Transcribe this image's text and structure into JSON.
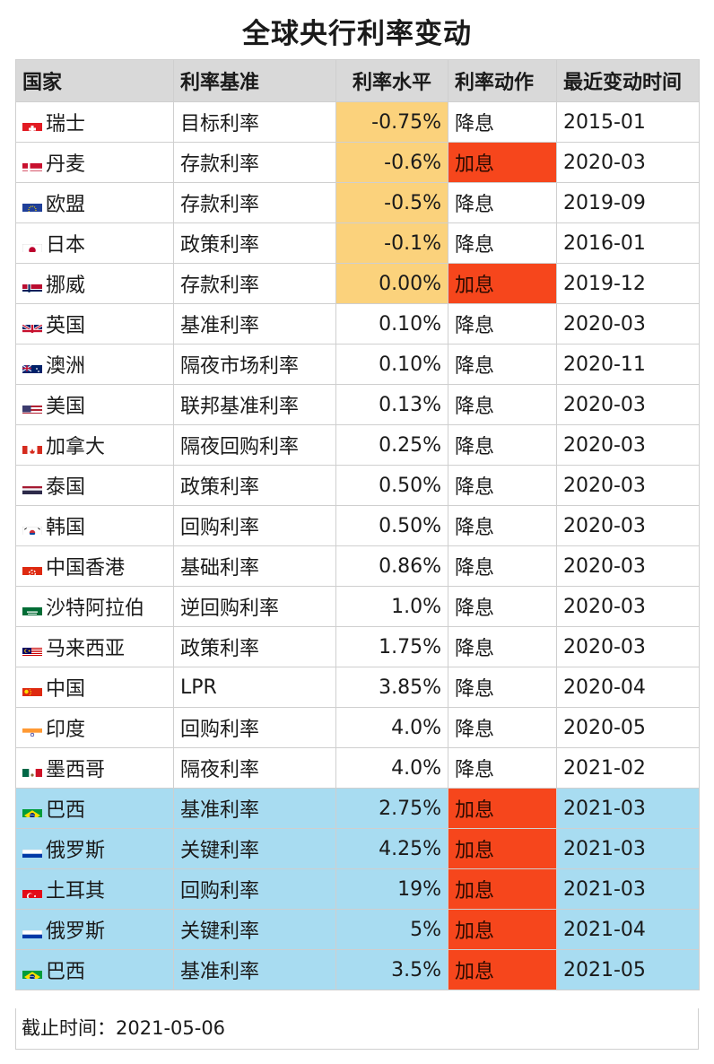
{
  "title": "全球央行利率变动",
  "headers": {
    "country": "国家",
    "benchmark": "利率基准",
    "level": "利率水平",
    "action": "利率动作",
    "date": "最近变动时间"
  },
  "colors": {
    "negative_level": "#fbd27c",
    "hike_action": "#f6461c",
    "recent_hike_row": "#a8dcf1",
    "header": "#d9d9d9"
  },
  "rows": [
    {
      "country": "瑞士",
      "flag": "switzerland-flag-icon",
      "benchmark": "目标利率",
      "level": "-0.75%",
      "action": "降息",
      "date": "2015-01"
    },
    {
      "country": "丹麦",
      "flag": "denmark-flag-icon",
      "benchmark": "存款利率",
      "level": "-0.6%",
      "action": "加息",
      "date": "2020-03"
    },
    {
      "country": "欧盟",
      "flag": "eu-flag-icon",
      "benchmark": "存款利率",
      "level": "-0.5%",
      "action": "降息",
      "date": "2019-09"
    },
    {
      "country": "日本",
      "flag": "japan-flag-icon",
      "benchmark": "政策利率",
      "level": "-0.1%",
      "action": "降息",
      "date": "2016-01"
    },
    {
      "country": "挪威",
      "flag": "norway-flag-icon",
      "benchmark": "存款利率",
      "level": "0.00%",
      "action": "加息",
      "date": "2019-12"
    },
    {
      "country": "英国",
      "flag": "uk-flag-icon",
      "benchmark": "基准利率",
      "level": "0.10%",
      "action": "降息",
      "date": "2020-03"
    },
    {
      "country": "澳洲",
      "flag": "australia-flag-icon",
      "benchmark": "隔夜市场利率",
      "level": "0.10%",
      "action": "降息",
      "date": "2020-11"
    },
    {
      "country": "美国",
      "flag": "usa-flag-icon",
      "benchmark": "联邦基准利率",
      "level": "0.13%",
      "action": "降息",
      "date": "2020-03"
    },
    {
      "country": "加拿大",
      "flag": "canada-flag-icon",
      "benchmark": "隔夜回购利率",
      "level": "0.25%",
      "action": "降息",
      "date": "2020-03"
    },
    {
      "country": "泰国",
      "flag": "thailand-flag-icon",
      "benchmark": "政策利率",
      "level": "0.50%",
      "action": "降息",
      "date": "2020-03"
    },
    {
      "country": "韩国",
      "flag": "korea-flag-icon",
      "benchmark": "回购利率",
      "level": "0.50%",
      "action": "降息",
      "date": "2020-03"
    },
    {
      "country": "中国香港",
      "flag": "hongkong-flag-icon",
      "benchmark": "基础利率",
      "level": "0.86%",
      "action": "降息",
      "date": "2020-03"
    },
    {
      "country": "沙特阿拉伯",
      "flag": "saudi-flag-icon",
      "benchmark": "逆回购利率",
      "level": "1.0%",
      "action": "降息",
      "date": "2020-03"
    },
    {
      "country": "马来西亚",
      "flag": "malaysia-flag-icon",
      "benchmark": "政策利率",
      "level": "1.75%",
      "action": "降息",
      "date": "2020-03"
    },
    {
      "country": "中国",
      "flag": "china-flag-icon",
      "benchmark": "LPR",
      "level": "3.85%",
      "action": "降息",
      "date": "2020-04"
    },
    {
      "country": "印度",
      "flag": "india-flag-icon",
      "benchmark": "回购利率",
      "level": "4.0%",
      "action": "降息",
      "date": "2020-05"
    },
    {
      "country": "墨西哥",
      "flag": "mexico-flag-icon",
      "benchmark": "隔夜利率",
      "level": "4.0%",
      "action": "降息",
      "date": "2021-02"
    },
    {
      "country": "巴西",
      "flag": "brazil-flag-icon",
      "benchmark": "基准利率",
      "level": "2.75%",
      "action": "加息",
      "date": "2021-03"
    },
    {
      "country": "俄罗斯",
      "flag": "russia-flag-icon",
      "benchmark": "关键利率",
      "level": "4.25%",
      "action": "加息",
      "date": "2021-03"
    },
    {
      "country": "土耳其",
      "flag": "turkey-flag-icon",
      "benchmark": "回购利率",
      "level": "19%",
      "action": "加息",
      "date": "2021-03"
    },
    {
      "country": "俄罗斯",
      "flag": "russia-flag-icon",
      "benchmark": "关键利率",
      "level": "5%",
      "action": "加息",
      "date": "2021-04"
    },
    {
      "country": "巴西",
      "flag": "brazil-flag-icon",
      "benchmark": "基准利率",
      "level": "3.5%",
      "action": "加息",
      "date": "2021-05"
    }
  ],
  "footer": "截止时间：2021-05-06"
}
